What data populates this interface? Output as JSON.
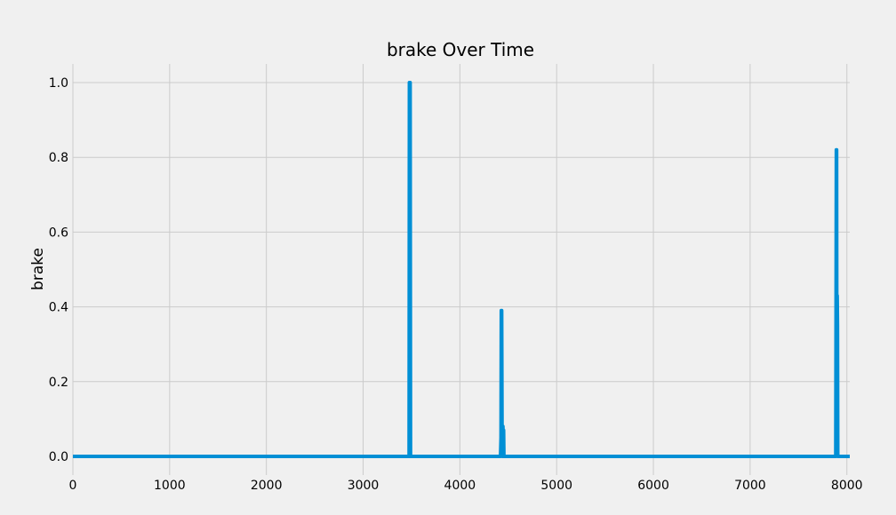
{
  "chart_data": {
    "type": "line",
    "title": "brake Over Time",
    "xlabel": "",
    "ylabel": "brake",
    "xlim": [
      0,
      8030
    ],
    "ylim": [
      -0.05,
      1.05
    ],
    "x_ticks": [
      0,
      1000,
      2000,
      3000,
      4000,
      5000,
      6000,
      7000,
      8000
    ],
    "x_tick_labels": [
      "0",
      "1000",
      "2000",
      "3000",
      "4000",
      "5000",
      "6000",
      "7000",
      "8000"
    ],
    "y_ticks": [
      0.0,
      0.2,
      0.4,
      0.6,
      0.8,
      1.0
    ],
    "y_tick_labels": [
      "0.0",
      "0.2",
      "0.4",
      "0.6",
      "0.8",
      "1.0"
    ],
    "grid": true,
    "legend": false,
    "series": [
      {
        "color": "#008fd5",
        "x": [
          0,
          3475,
          3478,
          3482,
          3486,
          3490,
          4420,
          4425,
          4428,
          4432,
          4436,
          4440,
          4445,
          4448,
          4452,
          4455,
          4460,
          7885,
          7888,
          7891,
          7894,
          7897,
          7900,
          7903,
          7906,
          8030
        ],
        "y": [
          0,
          0,
          1.0,
          1.0,
          1.0,
          0,
          0,
          0.05,
          0.39,
          0.39,
          0.07,
          0.0,
          0.08,
          0.02,
          0.07,
          0,
          0,
          0,
          0.38,
          0.82,
          0.82,
          0.1,
          0.43,
          0.35,
          0,
          0
        ]
      }
    ]
  }
}
